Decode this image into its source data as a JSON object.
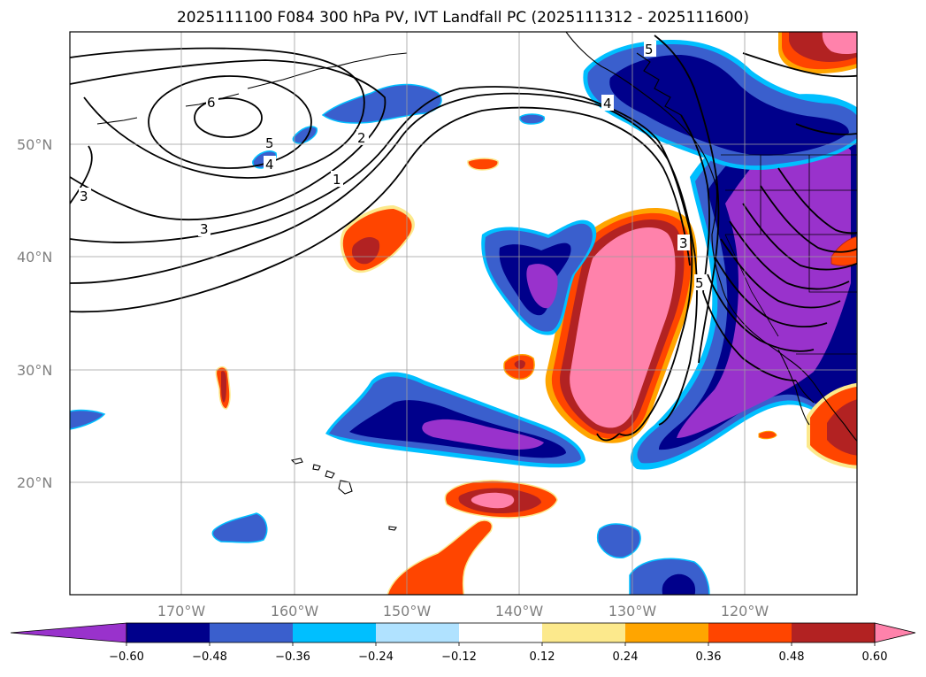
{
  "title": "2025111100 F084 300 hPa PV, IVT Landfall PC (2025111312 - 2025111600)",
  "lat_labels": [
    "50°N",
    "40°N",
    "30°N",
    "20°N"
  ],
  "lon_labels": [
    "170°W",
    "160°W",
    "150°W",
    "140°W",
    "130°W",
    "120°W"
  ],
  "colorbar": {
    "colors": [
      "#9932cc",
      "#00008b",
      "#3a5fcd",
      "#00bfff",
      "#b0e2ff",
      "#ffffff",
      "#fce98c",
      "#ffa500",
      "#ff4500",
      "#b22222",
      "#ff82ab"
    ],
    "tick_labels": [
      "−0.60",
      "−0.48",
      "−0.36",
      "−0.24",
      "−0.12",
      "0.12",
      "0.24",
      "0.36",
      "0.48",
      "0.60"
    ],
    "extend": "both"
  },
  "contour_labels": [
    "6",
    "5",
    "4",
    "3",
    "2",
    "1",
    "3",
    "5",
    "4",
    "3",
    "5"
  ],
  "colors": {
    "neg_strong": "#9932cc",
    "neg_mid": "#00008b",
    "neg_weak": "#3a5fcd",
    "neg_light": "#00bfff",
    "pos_light": "#fce98c",
    "pos_orange": "#ffa500",
    "pos_red": "#ff4500",
    "pos_dark": "#b22222",
    "pos_pink": "#ff82ab"
  }
}
